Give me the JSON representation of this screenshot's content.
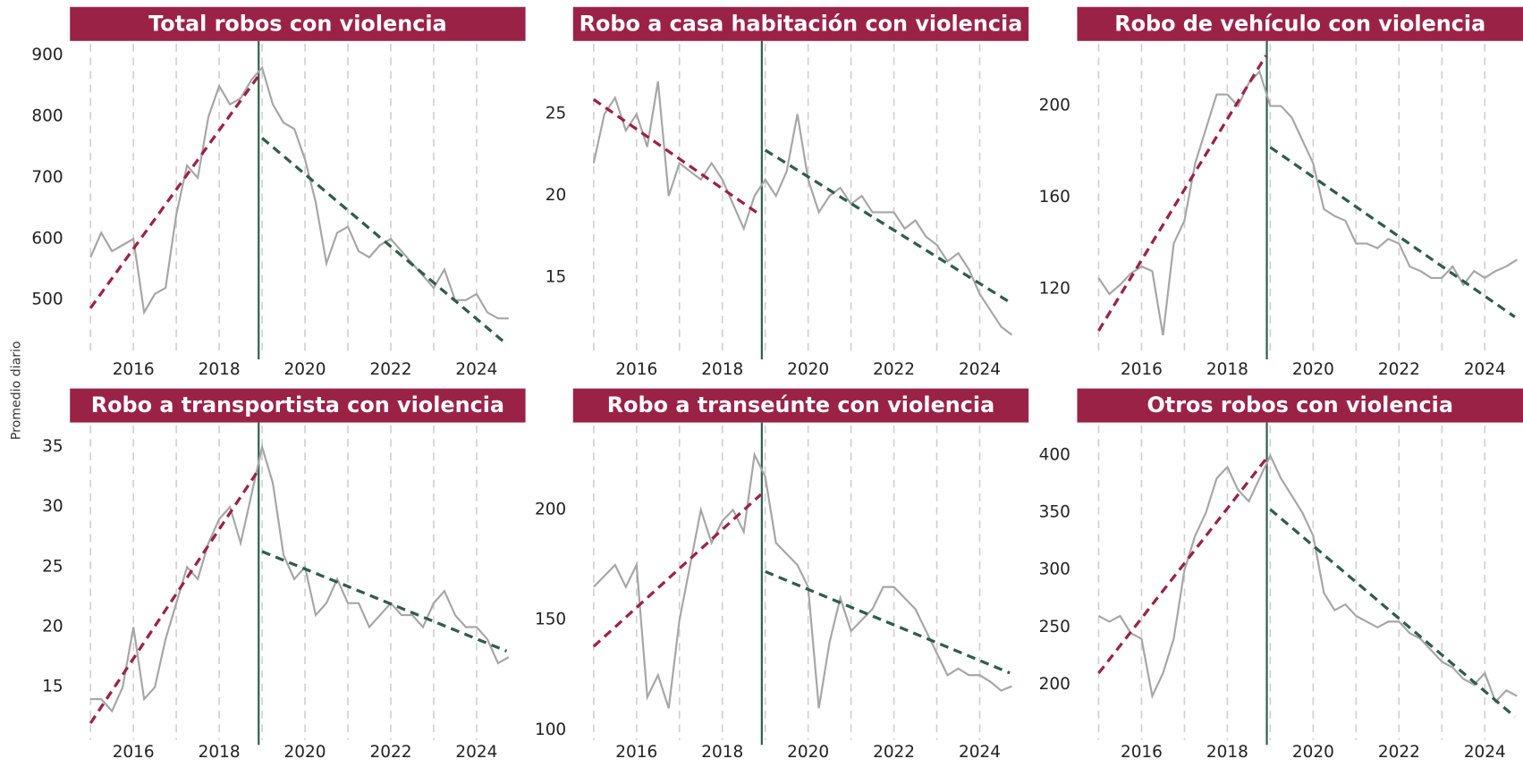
{
  "ylabel": "Promedio diario",
  "chart_data": [
    {
      "type": "line",
      "title": "Total robos con violencia",
      "x": [
        2015,
        2015.25,
        2015.5,
        2015.75,
        2016,
        2016.25,
        2016.5,
        2016.75,
        2017,
        2017.25,
        2017.5,
        2017.75,
        2018,
        2018.25,
        2018.5,
        2018.75,
        2019,
        2019.25,
        2019.5,
        2019.75,
        2020,
        2020.25,
        2020.5,
        2020.75,
        2021,
        2021.25,
        2021.5,
        2021.75,
        2022,
        2022.25,
        2022.5,
        2022.75,
        2023,
        2023.25,
        2023.5,
        2023.75,
        2024,
        2024.25,
        2024.5,
        2024.75
      ],
      "series": [
        {
          "color": "#a6a6a6",
          "values": [
            570,
            610,
            580,
            590,
            600,
            480,
            510,
            520,
            640,
            720,
            700,
            800,
            850,
            820,
            830,
            860,
            880,
            820,
            790,
            780,
            730,
            660,
            560,
            610,
            620,
            580,
            570,
            590,
            600,
            580,
            560,
            540,
            520,
            550,
            500,
            500,
            510,
            480,
            470,
            470
          ]
        },
        {
          "color": "#9b2247",
          "dash": true,
          "x": [
            2015,
            2018.9
          ],
          "values": [
            487,
            865
          ]
        },
        {
          "color": "#2f5d4b",
          "dash": true,
          "x": [
            2019,
            2024.7
          ],
          "values": [
            765,
            428
          ]
        }
      ],
      "vline": 2018.92,
      "xlim": [
        2014.52,
        2025.14
      ],
      "ylim": [
        411,
        919
      ],
      "xticks": [
        2016,
        2018,
        2020,
        2022,
        2024
      ],
      "xminor": [
        2015,
        2016,
        2017,
        2018,
        2019,
        2020,
        2021,
        2022,
        2023,
        2024
      ],
      "yticks": [
        500,
        600,
        700,
        800,
        900
      ]
    },
    {
      "type": "line",
      "title": "Robo a casa habitación con violencia",
      "x": [
        2015,
        2015.25,
        2015.5,
        2015.75,
        2016,
        2016.25,
        2016.5,
        2016.75,
        2017,
        2017.25,
        2017.5,
        2017.75,
        2018,
        2018.25,
        2018.5,
        2018.75,
        2019,
        2019.25,
        2019.5,
        2019.75,
        2020,
        2020.25,
        2020.5,
        2020.75,
        2021,
        2021.25,
        2021.5,
        2021.75,
        2022,
        2022.25,
        2022.5,
        2022.75,
        2023,
        2023.25,
        2023.5,
        2023.75,
        2024,
        2024.25,
        2024.5,
        2024.75
      ],
      "series": [
        {
          "color": "#a6a6a6",
          "values": [
            22,
            25,
            26,
            24,
            25,
            23,
            27,
            20,
            22,
            21.5,
            21,
            22,
            21,
            19.5,
            18,
            20,
            21,
            20,
            21.5,
            25,
            21,
            19,
            20,
            20.5,
            19.5,
            20,
            19,
            19,
            19,
            18,
            18.5,
            17.5,
            17,
            16,
            16.5,
            15.5,
            14,
            13,
            12,
            11.5
          ]
        },
        {
          "color": "#9b2247",
          "dash": true,
          "x": [
            2015,
            2018.85
          ],
          "values": [
            25.9,
            18.9
          ]
        },
        {
          "color": "#2f5d4b",
          "dash": true,
          "x": [
            2019,
            2024.7
          ],
          "values": [
            22.8,
            13.5
          ]
        }
      ],
      "vline": 2018.92,
      "xlim": [
        2014.52,
        2025.14
      ],
      "ylim": [
        10.3,
        29.3
      ],
      "xticks": [
        2016,
        2018,
        2020,
        2022,
        2024
      ],
      "xminor": [
        2015,
        2016,
        2017,
        2018,
        2019,
        2020,
        2021,
        2022,
        2023,
        2024
      ],
      "yticks": [
        15,
        20,
        25
      ]
    },
    {
      "type": "line",
      "title": "Robo de vehículo con violencia",
      "x": [
        2015,
        2015.25,
        2015.5,
        2015.75,
        2016,
        2016.25,
        2016.5,
        2016.75,
        2017,
        2017.25,
        2017.5,
        2017.75,
        2018,
        2018.25,
        2018.5,
        2018.75,
        2019,
        2019.25,
        2019.5,
        2019.75,
        2020,
        2020.25,
        2020.5,
        2020.75,
        2021,
        2021.25,
        2021.5,
        2021.75,
        2022,
        2022.25,
        2022.5,
        2022.75,
        2023,
        2023.25,
        2023.5,
        2023.75,
        2024,
        2024.25,
        2024.5,
        2024.75
      ],
      "series": [
        {
          "color": "#a6a6a6",
          "values": [
            125,
            118,
            122,
            127,
            130,
            128,
            100,
            140,
            150,
            175,
            190,
            205,
            205,
            200,
            210,
            215,
            200,
            200,
            195,
            185,
            175,
            155,
            152,
            150,
            140,
            140,
            138,
            142,
            140,
            130,
            128,
            125,
            125,
            130,
            122,
            128,
            125,
            128,
            130,
            133
          ]
        },
        {
          "color": "#9b2247",
          "dash": true,
          "x": [
            2015,
            2018.9
          ],
          "values": [
            102,
            222
          ]
        },
        {
          "color": "#2f5d4b",
          "dash": true,
          "x": [
            2019,
            2024.7
          ],
          "values": [
            182,
            108
          ]
        }
      ],
      "vline": 2018.92,
      "xlim": [
        2014.5,
        2024.89
      ],
      "ylim": [
        91.6,
        227.1
      ],
      "xticks": [
        2016,
        2018,
        2020,
        2022,
        2024
      ],
      "xminor": [
        2015,
        2016,
        2017,
        2018,
        2019,
        2020,
        2021,
        2022,
        2023,
        2024
      ],
      "yticks": [
        120,
        160,
        200
      ]
    },
    {
      "type": "line",
      "title": "Robo a transportista con violencia",
      "x": [
        2015,
        2015.25,
        2015.5,
        2015.75,
        2016,
        2016.25,
        2016.5,
        2016.75,
        2017,
        2017.25,
        2017.5,
        2017.75,
        2018,
        2018.25,
        2018.5,
        2018.75,
        2019,
        2019.25,
        2019.5,
        2019.75,
        2020,
        2020.25,
        2020.5,
        2020.75,
        2021,
        2021.25,
        2021.5,
        2021.75,
        2022,
        2022.25,
        2022.5,
        2022.75,
        2023,
        2023.25,
        2023.5,
        2023.75,
        2024,
        2024.25,
        2024.5,
        2024.75
      ],
      "series": [
        {
          "color": "#a6a6a6",
          "values": [
            14,
            14,
            13,
            15,
            20,
            14,
            15,
            19,
            22,
            25,
            24,
            27,
            29,
            30,
            27,
            31,
            35,
            32,
            26,
            24,
            25,
            21,
            22,
            24,
            22,
            22,
            20,
            21,
            22,
            21,
            21,
            20,
            22,
            23,
            21,
            20,
            20,
            19,
            17,
            17.5
          ]
        },
        {
          "color": "#9b2247",
          "dash": true,
          "x": [
            2015,
            2018.9
          ],
          "values": [
            12,
            33
          ]
        },
        {
          "color": "#2f5d4b",
          "dash": true,
          "x": [
            2019,
            2024.7
          ],
          "values": [
            26.3,
            18
          ]
        }
      ],
      "vline": 2018.92,
      "xlim": [
        2014.52,
        2025.14
      ],
      "ylim": [
        10.6,
        36.8
      ],
      "xticks": [
        2016,
        2018,
        2020,
        2022,
        2024
      ],
      "xminor": [
        2015,
        2016,
        2017,
        2018,
        2019,
        2020,
        2021,
        2022,
        2023,
        2024
      ],
      "yticks": [
        15,
        20,
        25,
        30,
        35
      ]
    },
    {
      "type": "line",
      "title": "Robo a transeúnte con violencia",
      "x": [
        2015,
        2015.25,
        2015.5,
        2015.75,
        2016,
        2016.25,
        2016.5,
        2016.75,
        2017,
        2017.25,
        2017.5,
        2017.75,
        2018,
        2018.25,
        2018.5,
        2018.75,
        2019,
        2019.25,
        2019.5,
        2019.75,
        2020,
        2020.25,
        2020.5,
        2020.75,
        2021,
        2021.25,
        2021.5,
        2021.75,
        2022,
        2022.25,
        2022.5,
        2022.75,
        2023,
        2023.25,
        2023.5,
        2023.75,
        2024,
        2024.25,
        2024.5,
        2024.75
      ],
      "series": [
        {
          "color": "#a6a6a6",
          "values": [
            165,
            170,
            175,
            165,
            175,
            115,
            125,
            110,
            150,
            175,
            200,
            185,
            195,
            200,
            190,
            225,
            215,
            185,
            180,
            175,
            165,
            110,
            140,
            160,
            145,
            150,
            155,
            165,
            165,
            160,
            155,
            145,
            135,
            125,
            128,
            125,
            125,
            122,
            118,
            120
          ]
        },
        {
          "color": "#9b2247",
          "dash": true,
          "x": [
            2015,
            2018.9
          ],
          "values": [
            138,
            207
          ]
        },
        {
          "color": "#2f5d4b",
          "dash": true,
          "x": [
            2019,
            2024.7
          ],
          "values": [
            172,
            126
          ]
        }
      ],
      "vline": 2018.92,
      "xlim": [
        2014.52,
        2025.14
      ],
      "ylim": [
        95.6,
        238.3
      ],
      "xticks": [
        2016,
        2018,
        2020,
        2022,
        2024
      ],
      "xminor": [
        2015,
        2016,
        2017,
        2018,
        2019,
        2020,
        2021,
        2022,
        2023,
        2024
      ],
      "yticks": [
        100,
        150,
        200
      ]
    },
    {
      "type": "line",
      "title": "Otros robos con violencia",
      "x": [
        2015,
        2015.25,
        2015.5,
        2015.75,
        2016,
        2016.25,
        2016.5,
        2016.75,
        2017,
        2017.25,
        2017.5,
        2017.75,
        2018,
        2018.25,
        2018.5,
        2018.75,
        2019,
        2019.25,
        2019.5,
        2019.75,
        2020,
        2020.25,
        2020.5,
        2020.75,
        2021,
        2021.25,
        2021.5,
        2021.75,
        2022,
        2022.25,
        2022.5,
        2022.75,
        2023,
        2023.25,
        2023.5,
        2023.75,
        2024,
        2024.25,
        2024.5,
        2024.75
      ],
      "series": [
        {
          "color": "#a6a6a6",
          "values": [
            260,
            255,
            260,
            245,
            240,
            190,
            210,
            240,
            300,
            330,
            350,
            380,
            390,
            370,
            360,
            380,
            400,
            380,
            365,
            350,
            330,
            280,
            265,
            270,
            260,
            255,
            250,
            255,
            255,
            245,
            240,
            230,
            220,
            215,
            205,
            200,
            210,
            185,
            195,
            190
          ]
        },
        {
          "color": "#9b2247",
          "dash": true,
          "x": [
            2015,
            2018.9
          ],
          "values": [
            210,
            397
          ]
        },
        {
          "color": "#2f5d4b",
          "dash": true,
          "x": [
            2019,
            2024.7
          ],
          "values": [
            353,
            172
          ]
        }
      ],
      "vline": 2018.92,
      "xlim": [
        2014.5,
        2024.89
      ],
      "ylim": [
        151.7,
        426.3
      ],
      "xticks": [
        2016,
        2018,
        2020,
        2022,
        2024
      ],
      "xminor": [
        2015,
        2016,
        2017,
        2018,
        2019,
        2020,
        2021,
        2022,
        2023,
        2024
      ],
      "yticks": [
        200,
        250,
        300,
        350,
        400
      ]
    }
  ]
}
